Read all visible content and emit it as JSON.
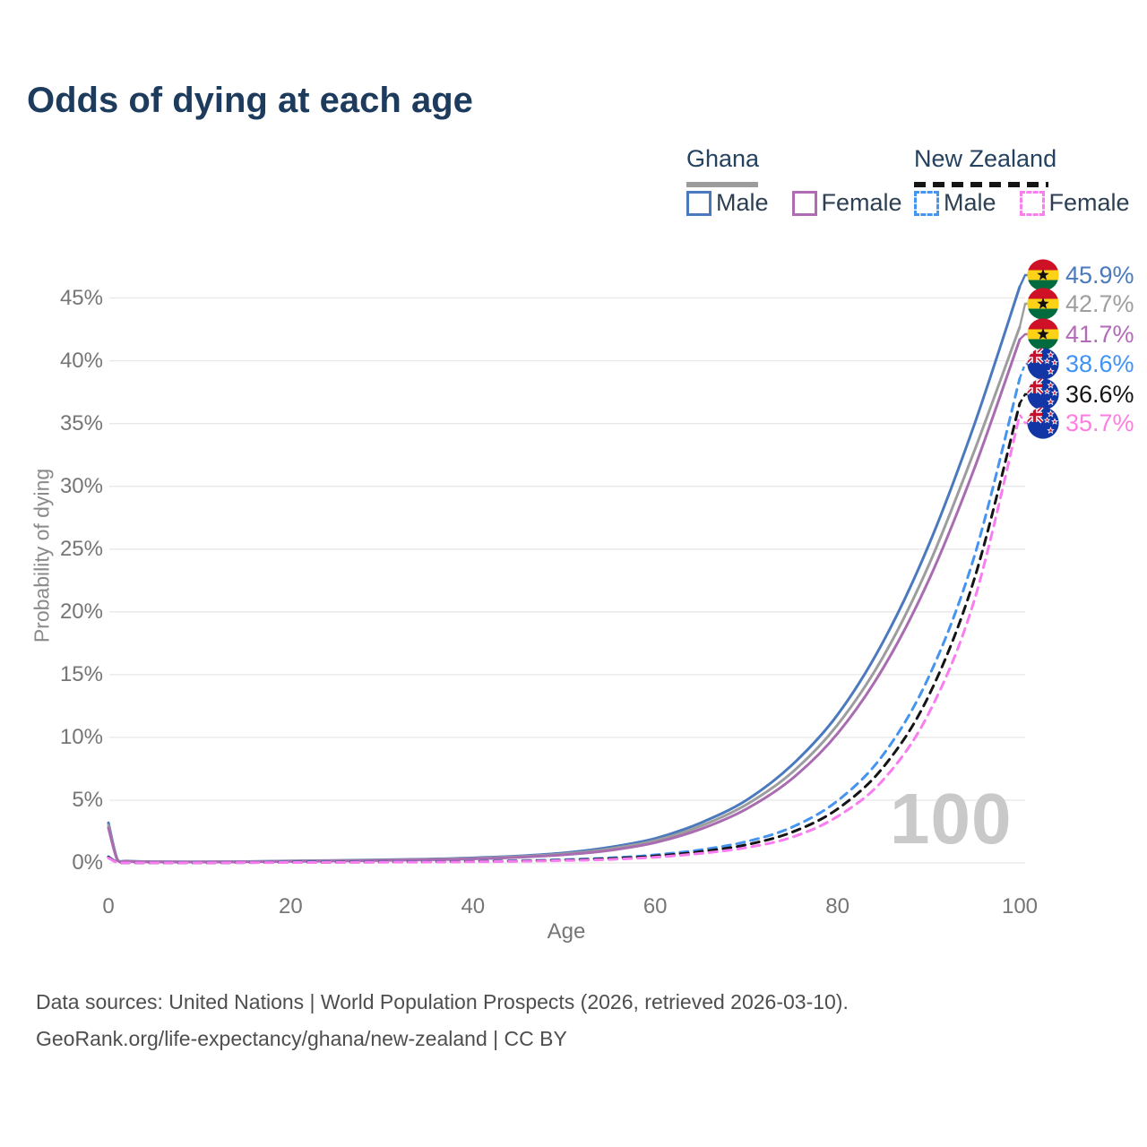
{
  "title": "Odds of dying at each age",
  "legend": {
    "groups": [
      {
        "country": "Ghana",
        "line_style": "solid",
        "underline_color": "#9c9c9c",
        "items": [
          {
            "label": "Male",
            "color": "#4a79bd",
            "dash": false
          },
          {
            "label": "Female",
            "color": "#b06cb3",
            "dash": false
          }
        ]
      },
      {
        "country": "New Zealand",
        "line_style": "dashed",
        "underline_color": "#151515",
        "items": [
          {
            "label": "Male",
            "color": "#4594f0",
            "dash": true
          },
          {
            "label": "Female",
            "color": "#fb7df0",
            "dash": true
          }
        ]
      }
    ]
  },
  "axes": {
    "y_label": "Probability of dying",
    "y_ticks": [
      0,
      5,
      10,
      15,
      20,
      25,
      30,
      35,
      40,
      45
    ],
    "y_tick_suffix": "%",
    "x_label": "Age",
    "x_ticks": [
      0,
      20,
      40,
      60,
      80,
      100
    ]
  },
  "watermark": "100",
  "end_labels": [
    {
      "value": "45.9%",
      "color": "#4a79bd",
      "flag": "gh",
      "flag_name": "ghana-flag-icon"
    },
    {
      "value": "42.7%",
      "color": "#9e9e9e",
      "flag": "gh",
      "flag_name": "ghana-flag-icon"
    },
    {
      "value": "41.7%",
      "color": "#b36ab8",
      "flag": "gh",
      "flag_name": "ghana-flag-icon"
    },
    {
      "value": "38.6%",
      "color": "#3f93f5",
      "flag": "nz",
      "flag_name": "new-zealand-flag-icon"
    },
    {
      "value": "36.6%",
      "color": "#141414",
      "flag": "nz",
      "flag_name": "new-zealand-flag-icon"
    },
    {
      "value": "35.7%",
      "color": "#ff7de0",
      "flag": "nz",
      "flag_name": "new-zealand-flag-icon"
    }
  ],
  "footer": {
    "line1": "Data sources: United Nations | World Population Prospects (2026, retrieved 2026-03-10).",
    "line2": "GeoRank.org/life-expectancy/ghana/new-zealand | CC BY"
  },
  "chart_data": {
    "type": "line",
    "title": "Odds of dying at each age",
    "xlabel": "Age",
    "ylabel": "Probability of dying",
    "unit": "%",
    "xlim": [
      0,
      100
    ],
    "ylim": [
      0,
      46
    ],
    "gridlines": "horizontal",
    "legend_position": "top-right",
    "x": [
      0,
      1,
      2,
      5,
      10,
      15,
      20,
      25,
      30,
      35,
      40,
      45,
      50,
      55,
      60,
      65,
      70,
      75,
      80,
      85,
      90,
      95,
      100
    ],
    "series": [
      {
        "name": "Ghana — Male",
        "country": "Ghana",
        "sex": "male",
        "color": "#4a79bd",
        "dash": false,
        "end_value": 45.9,
        "values": [
          3.2,
          0.25,
          0.15,
          0.1,
          0.09,
          0.11,
          0.16,
          0.2,
          0.25,
          0.31,
          0.4,
          0.55,
          0.8,
          1.25,
          1.95,
          3.2,
          5.0,
          7.8,
          11.8,
          17.6,
          25.3,
          34.9,
          45.9
        ]
      },
      {
        "name": "Ghana — Both sexes",
        "country": "Ghana",
        "sex": "both",
        "color": "#9d9d9d",
        "dash": false,
        "end_value": 42.7,
        "values": [
          3.0,
          0.22,
          0.13,
          0.09,
          0.08,
          0.1,
          0.14,
          0.18,
          0.22,
          0.28,
          0.36,
          0.5,
          0.72,
          1.12,
          1.78,
          2.95,
          4.65,
          7.2,
          11.0,
          16.4,
          23.7,
          32.8,
          42.7
        ]
      },
      {
        "name": "Ghana — Female",
        "country": "Ghana",
        "sex": "female",
        "color": "#a96cb1",
        "dash": false,
        "end_value": 41.7,
        "values": [
          2.8,
          0.2,
          0.12,
          0.08,
          0.07,
          0.09,
          0.12,
          0.15,
          0.19,
          0.25,
          0.32,
          0.45,
          0.65,
          1.0,
          1.62,
          2.7,
          4.3,
          6.7,
          10.3,
          15.5,
          22.5,
          31.4,
          41.7
        ]
      },
      {
        "name": "New Zealand — Male",
        "country": "New Zealand",
        "sex": "male",
        "color": "#4594f0",
        "dash": true,
        "end_value": 38.6,
        "values": [
          0.5,
          0.04,
          0.02,
          0.01,
          0.01,
          0.04,
          0.07,
          0.08,
          0.09,
          0.1,
          0.13,
          0.18,
          0.26,
          0.4,
          0.64,
          1.05,
          1.7,
          2.85,
          4.95,
          8.6,
          14.8,
          24.4,
          38.6
        ]
      },
      {
        "name": "New Zealand — Both sexes",
        "country": "New Zealand",
        "sex": "both",
        "color": "#141414",
        "dash": true,
        "end_value": 36.6,
        "values": [
          0.45,
          0.035,
          0.018,
          0.01,
          0.01,
          0.03,
          0.05,
          0.06,
          0.07,
          0.085,
          0.11,
          0.15,
          0.22,
          0.34,
          0.55,
          0.9,
          1.45,
          2.45,
          4.3,
          7.6,
          13.3,
          22.6,
          36.6
        ]
      },
      {
        "name": "New Zealand — Female",
        "country": "New Zealand",
        "sex": "female",
        "color": "#f97cf0",
        "dash": true,
        "end_value": 35.7,
        "values": [
          0.4,
          0.03,
          0.015,
          0.01,
          0.01,
          0.025,
          0.035,
          0.045,
          0.055,
          0.07,
          0.09,
          0.13,
          0.19,
          0.28,
          0.46,
          0.76,
          1.22,
          2.05,
          3.7,
          6.6,
          11.9,
          20.9,
          35.7
        ]
      }
    ]
  }
}
